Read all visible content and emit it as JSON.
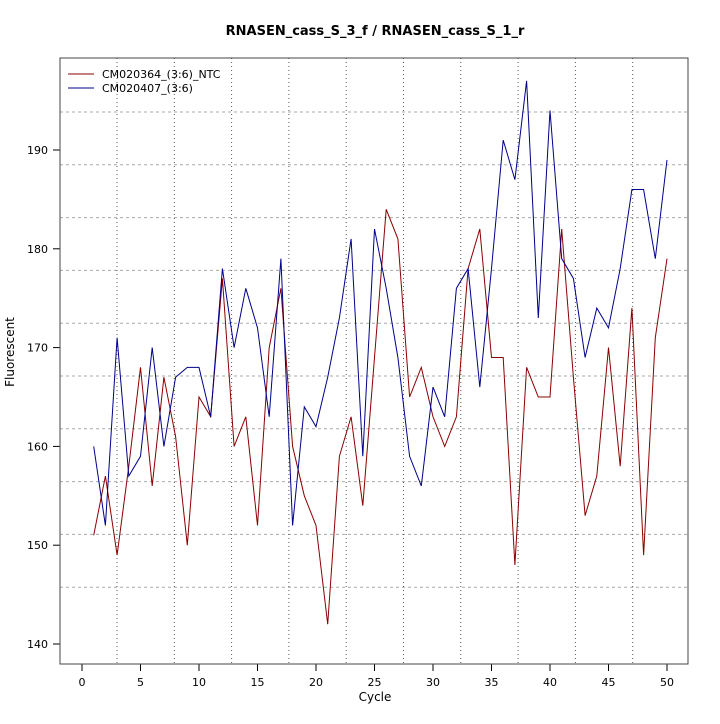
{
  "chart_data": {
    "type": "line",
    "title": "RNASEN_cass_S_3_f / RNASEN_cass_S_1_r",
    "xlabel": "Cycle",
    "ylabel": "Fluorescent",
    "xlim": [
      0,
      50
    ],
    "ylim": [
      140,
      198
    ],
    "xticks": [
      0,
      5,
      10,
      15,
      20,
      25,
      30,
      35,
      40,
      45,
      50
    ],
    "yticks": [
      140,
      150,
      160,
      170,
      180,
      190
    ],
    "grid": true,
    "legend_position": "top-left",
    "x": [
      1,
      2,
      3,
      4,
      5,
      6,
      7,
      8,
      9,
      10,
      11,
      12,
      13,
      14,
      15,
      16,
      17,
      18,
      19,
      20,
      21,
      22,
      23,
      24,
      25,
      26,
      27,
      28,
      29,
      30,
      31,
      32,
      33,
      34,
      35,
      36,
      37,
      38,
      39,
      40,
      41,
      42,
      43,
      44,
      45,
      46,
      47,
      48,
      49,
      50
    ],
    "series": [
      {
        "name": "CM020364_(3:6)_NTC",
        "color": "#8b0000",
        "values": [
          151,
          157,
          149,
          158,
          168,
          156,
          167,
          161,
          150,
          165,
          163,
          177,
          160,
          163,
          152,
          170,
          176,
          160,
          155,
          152,
          142,
          159,
          163,
          154,
          169,
          184,
          181,
          165,
          168,
          163,
          160,
          163,
          178,
          182,
          169,
          169,
          148,
          168,
          165,
          165,
          182,
          167,
          153,
          157,
          170,
          158,
          174,
          149,
          171,
          179
        ]
      },
      {
        "name": "CM020407_(3:6)",
        "color": "#00008b",
        "values": [
          160,
          152,
          171,
          157,
          159,
          170,
          160,
          167,
          168,
          168,
          163,
          178,
          170,
          176,
          172,
          163,
          179,
          152,
          164,
          162,
          167,
          173,
          181,
          159,
          182,
          176,
          169,
          159,
          156,
          166,
          163,
          176,
          178,
          166,
          178,
          191,
          187,
          197,
          173,
          194,
          179,
          177,
          169,
          174,
          172,
          178,
          186,
          186,
          179,
          189
        ]
      }
    ]
  }
}
